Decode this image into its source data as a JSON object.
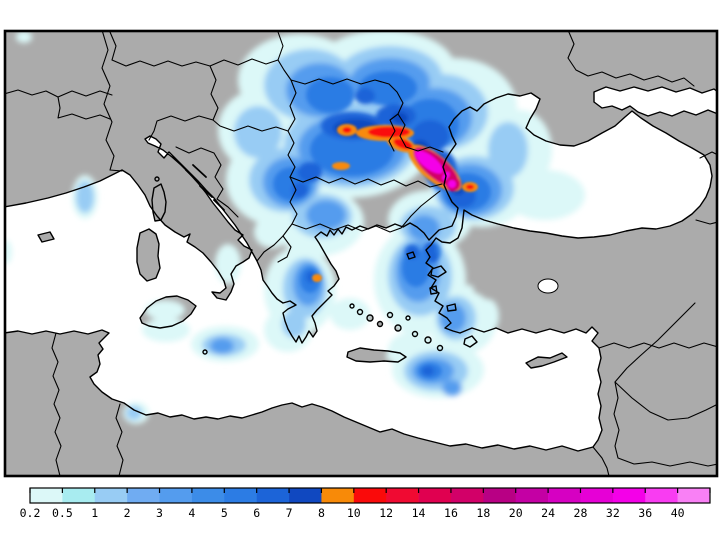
{
  "figure": {
    "kind": "precipitation-contour-map"
  },
  "map": {
    "colors": {
      "land": "#ababab",
      "sea": "#ffffff",
      "line": "#000000"
    }
  },
  "legend": {
    "tick_labels": [
      "0.2",
      "0.5",
      "1",
      "2",
      "3",
      "4",
      "5",
      "6",
      "7",
      "8",
      "10",
      "12",
      "14",
      "16",
      "18",
      "20",
      "24",
      "28",
      "32",
      "36",
      "40"
    ],
    "band_colors": [
      "#dcf8f8",
      "#a8ecf0",
      "#98ccf4",
      "#70acf2",
      "#549cee",
      "#3c8ce8",
      "#2c7ce4",
      "#1c64d8",
      "#1048c0",
      "#f88a08",
      "#fa0a0a",
      "#f00a32",
      "#e00050",
      "#d20068",
      "#b80084",
      "#c400a4",
      "#d600c2",
      "#e600d6",
      "#f400e8",
      "#f93cf2",
      "#f980f5"
    ]
  }
}
